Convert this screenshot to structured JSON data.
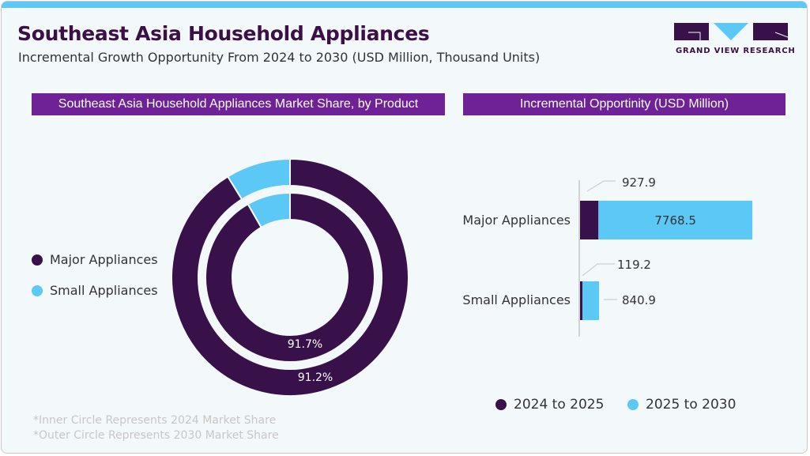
{
  "header": {
    "title": "Southeast Asia Household Appliances",
    "subtitle": "Incremental Growth Opportunity From 2024 to 2030 (USD Million, Thousand Units)",
    "logo_text": "GRAND VIEW RESEARCH"
  },
  "colors": {
    "major": "#38114a",
    "small": "#5bc8f5",
    "header_bg": "#6e2296",
    "accent_bar": "#5bc8f5"
  },
  "left_panel": {
    "title": "Southeast Asia Household Appliances Market Share, by Product",
    "legend": [
      {
        "label": "Major Appliances",
        "color": "#38114a"
      },
      {
        "label": "Small Appliances",
        "color": "#5bc8f5"
      }
    ],
    "notes": [
      "*Inner Circle Represents 2024 Market Share",
      "*Outer Circle Represents 2030 Market Share"
    ]
  },
  "right_panel": {
    "title": "Incremental Opportinity (USD Million)",
    "legend": [
      {
        "label": "2024 to 2025",
        "color": "#38114a"
      },
      {
        "label": "2025 to 2030",
        "color": "#5bc8f5"
      }
    ]
  },
  "chart_data": [
    {
      "type": "pie",
      "subtype": "nested-donut",
      "title": "Southeast Asia Household Appliances Market Share, by Product",
      "categories": [
        "Major Appliances",
        "Small Appliances"
      ],
      "series": [
        {
          "name": "2024 (inner)",
          "values": [
            91.7,
            8.3
          ],
          "labels": [
            "91.7%",
            ""
          ]
        },
        {
          "name": "2030 (outer)",
          "values": [
            91.2,
            8.8
          ],
          "labels": [
            "91.2%",
            ""
          ]
        }
      ],
      "legend_position": "left"
    },
    {
      "type": "bar",
      "orientation": "horizontal",
      "stacked": true,
      "title": "Incremental Opportinity (USD Million)",
      "categories": [
        "Major Appliances",
        "Small Appliances"
      ],
      "series": [
        {
          "name": "2024 to 2025",
          "values": [
            927.9,
            119.2
          ]
        },
        {
          "name": "2025 to 2030",
          "values": [
            7768.5,
            840.9
          ]
        }
      ],
      "legend_position": "bottom"
    }
  ]
}
